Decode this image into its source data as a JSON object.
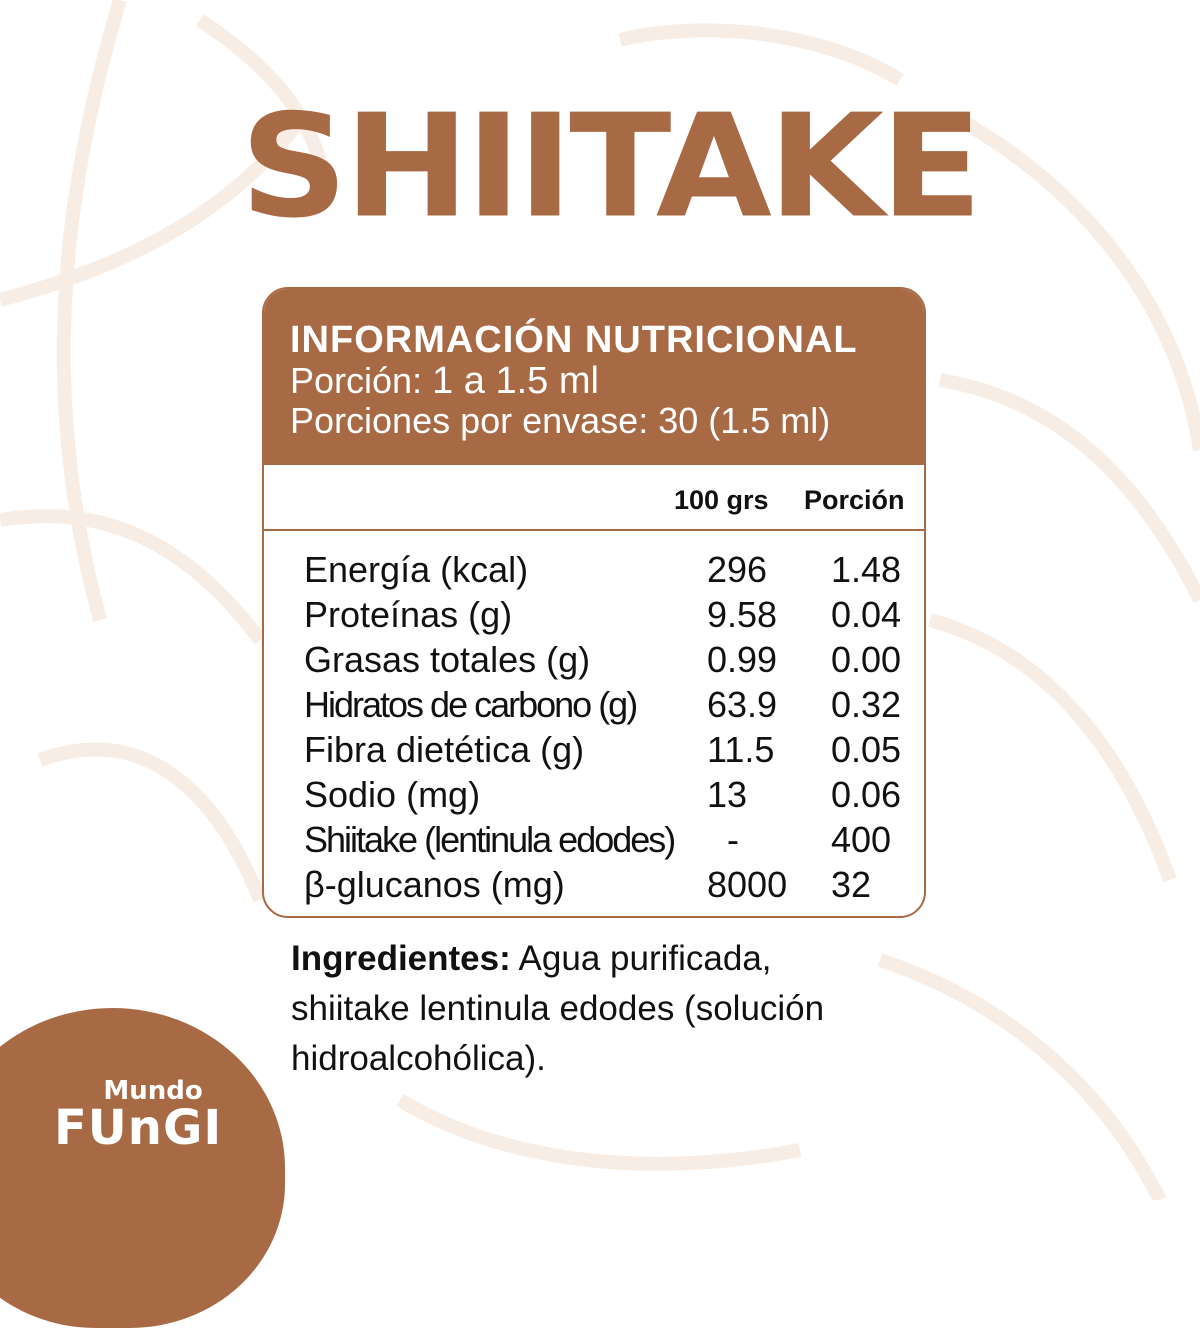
{
  "product_title": "SHIITAKE",
  "colors": {
    "brand": "#A86A45",
    "pattern": "#F7EDE4"
  },
  "panel": {
    "heading": "INFORMACIÓN NUTRICIONAL",
    "serving_label": "Porción:",
    "serving_value": "1 a 1.5 ml",
    "servings_per_container": "Porciones por envase: 30 (1.5 ml)",
    "columns": [
      "100 grs",
      "Porción"
    ],
    "rows": [
      {
        "label": "Energía (kcal)",
        "per100": "296",
        "portion": "1.48"
      },
      {
        "label": "Proteínas (g)",
        "per100": "9.58",
        "portion": "0.04"
      },
      {
        "label": "Grasas totales (g)",
        "per100": "0.99",
        "portion": "0.00"
      },
      {
        "label": "Hidratos de carbono (g)",
        "per100": "63.9",
        "portion": "0.32"
      },
      {
        "label": "Fibra dietética (g)",
        "per100": "11.5",
        "portion": "0.05"
      },
      {
        "label": "Sodio (mg)",
        "per100": "13",
        "portion": "0.06"
      },
      {
        "label": "Shiitake (lentinula edodes)",
        "per100": "-",
        "portion": "400"
      },
      {
        "label": "β-glucanos (mg)",
        "per100": "8000",
        "portion": "32"
      }
    ]
  },
  "ingredients": {
    "label": "Ingredientes:",
    "text": " Agua purificada, shiitake lentinula edodes (solución hidroalcohólica)."
  },
  "logo": {
    "line1": "Mundo",
    "line2": "FUnGI"
  }
}
